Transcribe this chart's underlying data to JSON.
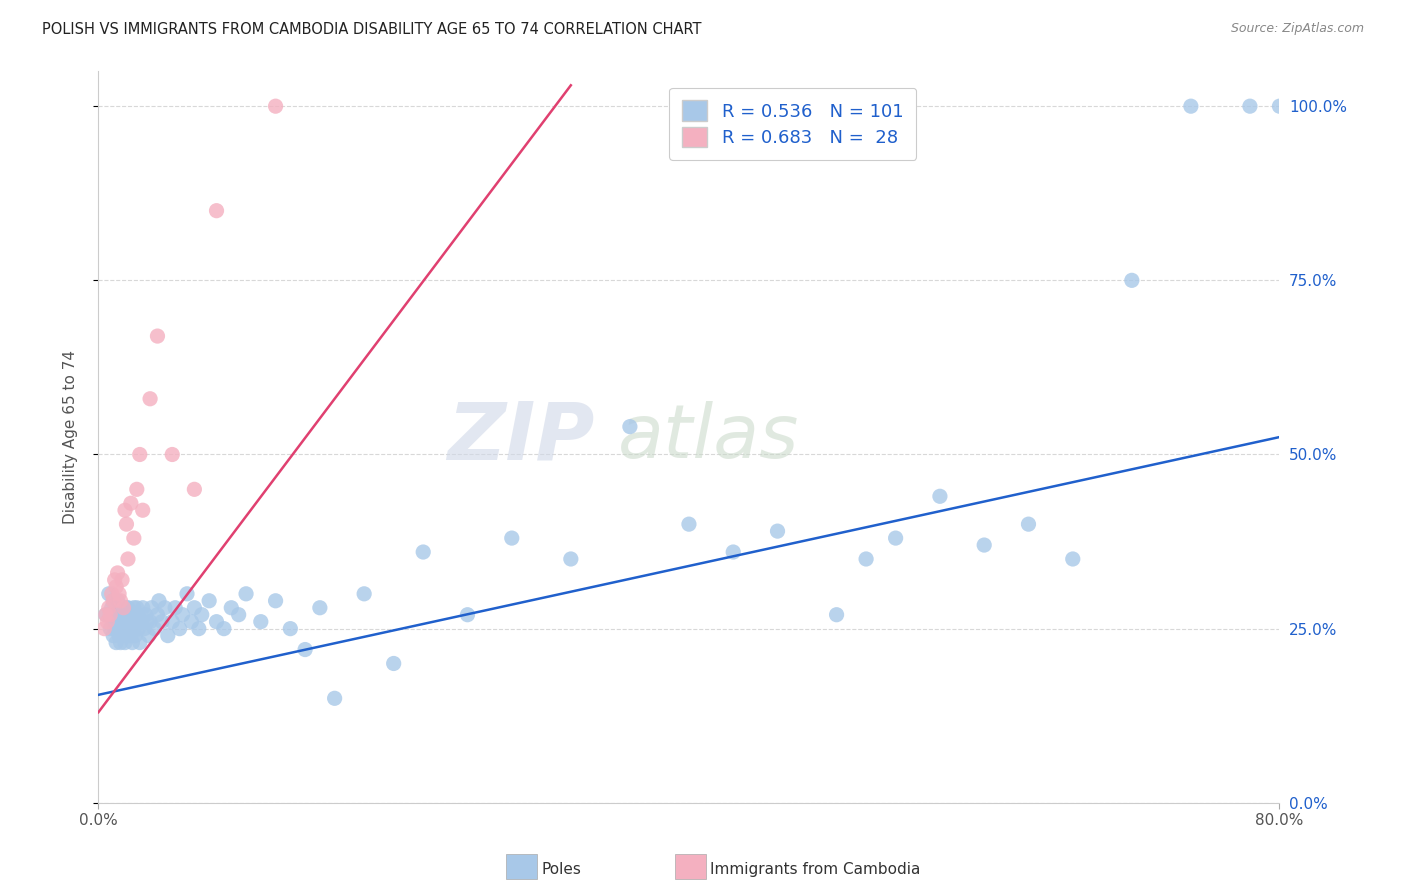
{
  "title": "POLISH VS IMMIGRANTS FROM CAMBODIA DISABILITY AGE 65 TO 74 CORRELATION CHART",
  "source": "Source: ZipAtlas.com",
  "ylabel": "Disability Age 65 to 74",
  "xmin": 0.0,
  "xmax": 0.8,
  "ymin": 0.0,
  "ymax": 1.05,
  "blue_R": 0.536,
  "blue_N": 101,
  "pink_R": 0.683,
  "pink_N": 28,
  "blue_color": "#a8c8e8",
  "pink_color": "#f4b0c0",
  "blue_line_color": "#2060cc",
  "pink_line_color": "#e04070",
  "legend_label_blue": "Poles",
  "legend_label_pink": "Immigrants from Cambodia",
  "watermark_zip": "ZIP",
  "watermark_atlas": "atlas",
  "blue_line_x0": 0.0,
  "blue_line_y0": 0.155,
  "blue_line_x1": 0.8,
  "blue_line_y1": 0.525,
  "pink_line_x0": 0.0,
  "pink_line_y0": 0.13,
  "pink_line_x1": 0.32,
  "pink_line_y1": 1.03,
  "blue_scatter_x": [
    0.005,
    0.007,
    0.008,
    0.009,
    0.01,
    0.01,
    0.01,
    0.011,
    0.011,
    0.012,
    0.012,
    0.013,
    0.013,
    0.013,
    0.014,
    0.014,
    0.015,
    0.015,
    0.015,
    0.016,
    0.016,
    0.017,
    0.017,
    0.018,
    0.018,
    0.019,
    0.019,
    0.02,
    0.02,
    0.02,
    0.021,
    0.021,
    0.022,
    0.022,
    0.023,
    0.023,
    0.024,
    0.024,
    0.025,
    0.025,
    0.026,
    0.026,
    0.027,
    0.027,
    0.028,
    0.029,
    0.03,
    0.031,
    0.032,
    0.033,
    0.034,
    0.035,
    0.036,
    0.038,
    0.04,
    0.041,
    0.043,
    0.045,
    0.047,
    0.05,
    0.052,
    0.055,
    0.057,
    0.06,
    0.063,
    0.065,
    0.068,
    0.07,
    0.075,
    0.08,
    0.085,
    0.09,
    0.095,
    0.1,
    0.11,
    0.12,
    0.13,
    0.14,
    0.15,
    0.16,
    0.18,
    0.2,
    0.22,
    0.25,
    0.28,
    0.32,
    0.36,
    0.4,
    0.43,
    0.46,
    0.5,
    0.52,
    0.54,
    0.57,
    0.6,
    0.63,
    0.66,
    0.7,
    0.74,
    0.78,
    0.8
  ],
  "blue_scatter_y": [
    0.27,
    0.3,
    0.25,
    0.28,
    0.24,
    0.26,
    0.29,
    0.25,
    0.27,
    0.23,
    0.26,
    0.25,
    0.27,
    0.29,
    0.24,
    0.26,
    0.23,
    0.25,
    0.27,
    0.24,
    0.26,
    0.25,
    0.27,
    0.23,
    0.26,
    0.25,
    0.28,
    0.24,
    0.26,
    0.28,
    0.25,
    0.27,
    0.24,
    0.26,
    0.23,
    0.27,
    0.25,
    0.28,
    0.24,
    0.27,
    0.26,
    0.28,
    0.25,
    0.27,
    0.23,
    0.26,
    0.28,
    0.25,
    0.27,
    0.26,
    0.24,
    0.26,
    0.28,
    0.25,
    0.27,
    0.29,
    0.26,
    0.28,
    0.24,
    0.26,
    0.28,
    0.25,
    0.27,
    0.3,
    0.26,
    0.28,
    0.25,
    0.27,
    0.29,
    0.26,
    0.25,
    0.28,
    0.27,
    0.3,
    0.26,
    0.29,
    0.25,
    0.22,
    0.28,
    0.15,
    0.3,
    0.2,
    0.36,
    0.27,
    0.38,
    0.35,
    0.54,
    0.4,
    0.36,
    0.39,
    0.27,
    0.35,
    0.38,
    0.44,
    0.37,
    0.4,
    0.35,
    0.75,
    1.0,
    1.0,
    1.0
  ],
  "pink_scatter_x": [
    0.004,
    0.005,
    0.006,
    0.007,
    0.008,
    0.009,
    0.01,
    0.011,
    0.012,
    0.013,
    0.014,
    0.015,
    0.016,
    0.017,
    0.018,
    0.019,
    0.02,
    0.022,
    0.024,
    0.026,
    0.028,
    0.03,
    0.035,
    0.04,
    0.05,
    0.065,
    0.08,
    0.12
  ],
  "pink_scatter_y": [
    0.25,
    0.27,
    0.26,
    0.28,
    0.27,
    0.3,
    0.29,
    0.32,
    0.31,
    0.33,
    0.3,
    0.29,
    0.32,
    0.28,
    0.42,
    0.4,
    0.35,
    0.43,
    0.38,
    0.45,
    0.5,
    0.42,
    0.58,
    0.67,
    0.5,
    0.45,
    0.85,
    1.0
  ]
}
